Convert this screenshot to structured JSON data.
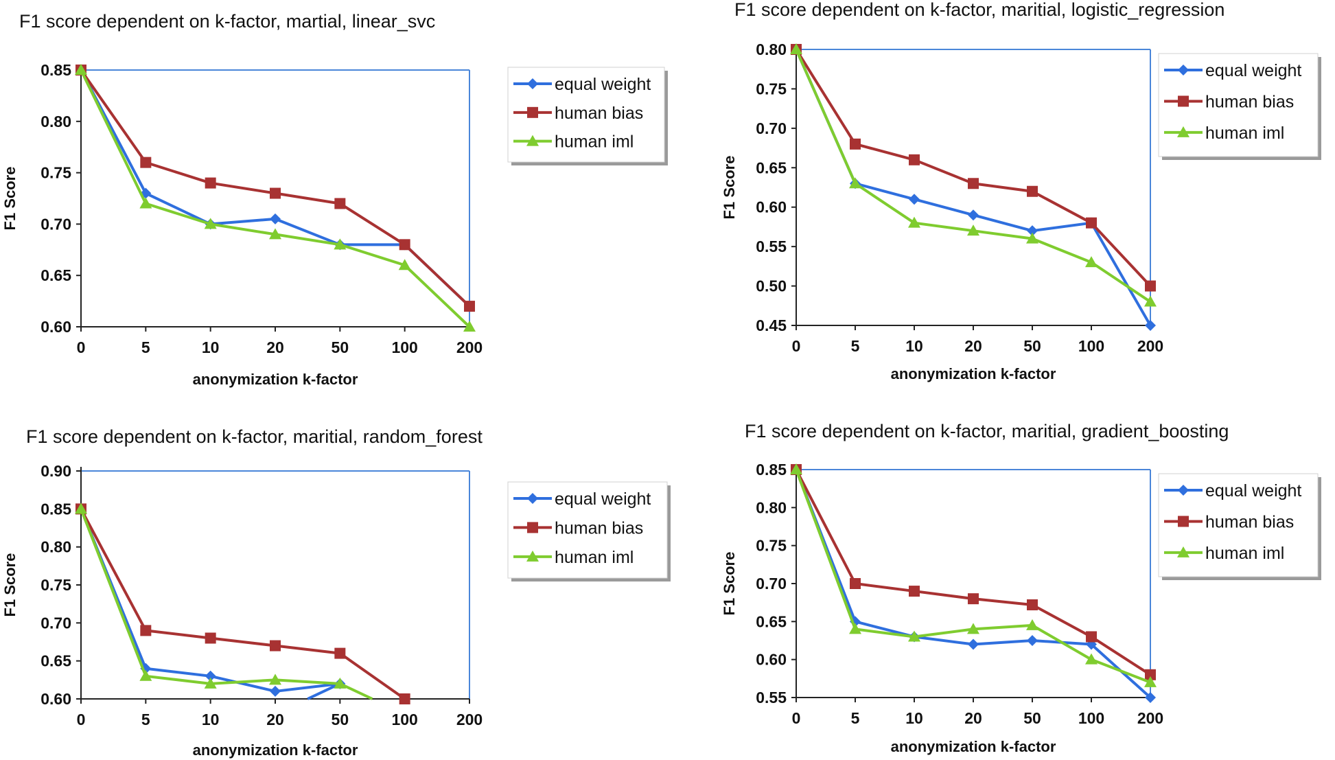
{
  "chart_data": [
    {
      "type": "line",
      "title": "F1 score dependent on k-factor, martial, linear_svc",
      "xlabel": "anonymization  k-factor",
      "ylabel": "F1 Score",
      "categories": [
        "0",
        "5",
        "10",
        "20",
        "50",
        "100",
        "200"
      ],
      "ylim": [
        0.6,
        0.85
      ],
      "yticks": [
        "0.85",
        "0.80",
        "0.75",
        "0.70",
        "0.65",
        "0.60"
      ],
      "series": [
        {
          "name": "equal weight",
          "color": "#2f6fde",
          "marker": "diamond",
          "values": [
            0.85,
            0.73,
            0.7,
            0.705,
            0.68,
            0.68,
            0.62
          ]
        },
        {
          "name": "human bias",
          "color": "#a83232",
          "marker": "square",
          "values": [
            0.85,
            0.76,
            0.74,
            0.73,
            0.72,
            0.68,
            0.62
          ]
        },
        {
          "name": "human iml",
          "color": "#7fcc2f",
          "marker": "triangle",
          "values": [
            0.85,
            0.72,
            0.7,
            0.69,
            0.68,
            0.66,
            0.6
          ]
        }
      ]
    },
    {
      "type": "line",
      "title": "F1 score dependent on k-factor, maritial, logistic_regression",
      "xlabel": "anonymization  k-factor",
      "ylabel": "F1 Score",
      "categories": [
        "0",
        "5",
        "10",
        "20",
        "50",
        "100",
        "200"
      ],
      "ylim": [
        0.45,
        0.8
      ],
      "yticks": [
        "0.80",
        "0.75",
        "0.70",
        "0.65",
        "0.60",
        "0.55",
        "0.50",
        "0.45"
      ],
      "series": [
        {
          "name": "equal weight",
          "color": "#2f6fde",
          "marker": "diamond",
          "values": [
            0.8,
            0.63,
            0.61,
            0.59,
            0.57,
            0.58,
            0.45
          ]
        },
        {
          "name": "human bias",
          "color": "#a83232",
          "marker": "square",
          "values": [
            0.8,
            0.68,
            0.66,
            0.63,
            0.62,
            0.58,
            0.5
          ]
        },
        {
          "name": "human iml",
          "color": "#7fcc2f",
          "marker": "triangle",
          "values": [
            0.8,
            0.63,
            0.58,
            0.57,
            0.56,
            0.53,
            0.48
          ]
        }
      ]
    },
    {
      "type": "line",
      "title": "F1 score dependent on k-factor, maritial, random_forest",
      "xlabel": "anonymization  k-factor",
      "ylabel": "F1 Score",
      "categories": [
        "0",
        "5",
        "10",
        "20",
        "50",
        "100",
        "200"
      ],
      "ylim": [
        0.6,
        0.9
      ],
      "yticks": [
        "0.90",
        "0.85",
        "0.80",
        "0.75",
        "0.70",
        "0.65",
        "0.60"
      ],
      "series": [
        {
          "name": "equal weight",
          "color": "#2f6fde",
          "marker": "diamond",
          "values": [
            0.85,
            0.64,
            0.63,
            0.61,
            0.62,
            null,
            null
          ],
          "tail": [
            3.5,
            0.6
          ]
        },
        {
          "name": "human bias",
          "color": "#a83232",
          "marker": "square",
          "values": [
            0.85,
            0.69,
            0.68,
            0.67,
            0.66,
            0.6,
            null
          ]
        },
        {
          "name": "human iml",
          "color": "#7fcc2f",
          "marker": "triangle",
          "values": [
            0.85,
            0.63,
            0.62,
            0.625,
            0.62,
            null,
            null
          ],
          "tail": [
            4.5,
            0.6
          ]
        }
      ]
    },
    {
      "type": "line",
      "title": "F1 score dependent on k-factor, maritial, gradient_boosting",
      "xlabel": "anonymization  k-factor",
      "ylabel": "F1 Score",
      "categories": [
        "0",
        "5",
        "10",
        "20",
        "50",
        "100",
        "200"
      ],
      "ylim": [
        0.55,
        0.85
      ],
      "yticks": [
        "0.85",
        "0.80",
        "0.75",
        "0.70",
        "0.65",
        "0.60",
        "0.55"
      ],
      "series": [
        {
          "name": "equal weight",
          "color": "#2f6fde",
          "marker": "diamond",
          "values": [
            0.85,
            0.65,
            0.63,
            0.62,
            0.625,
            0.62,
            0.55
          ]
        },
        {
          "name": "human bias",
          "color": "#a83232",
          "marker": "square",
          "values": [
            0.85,
            0.7,
            0.69,
            0.68,
            0.672,
            0.63,
            0.58
          ]
        },
        {
          "name": "human iml",
          "color": "#7fcc2f",
          "marker": "triangle",
          "values": [
            0.85,
            0.64,
            0.63,
            0.64,
            0.645,
            0.6,
            0.57
          ]
        }
      ]
    }
  ]
}
